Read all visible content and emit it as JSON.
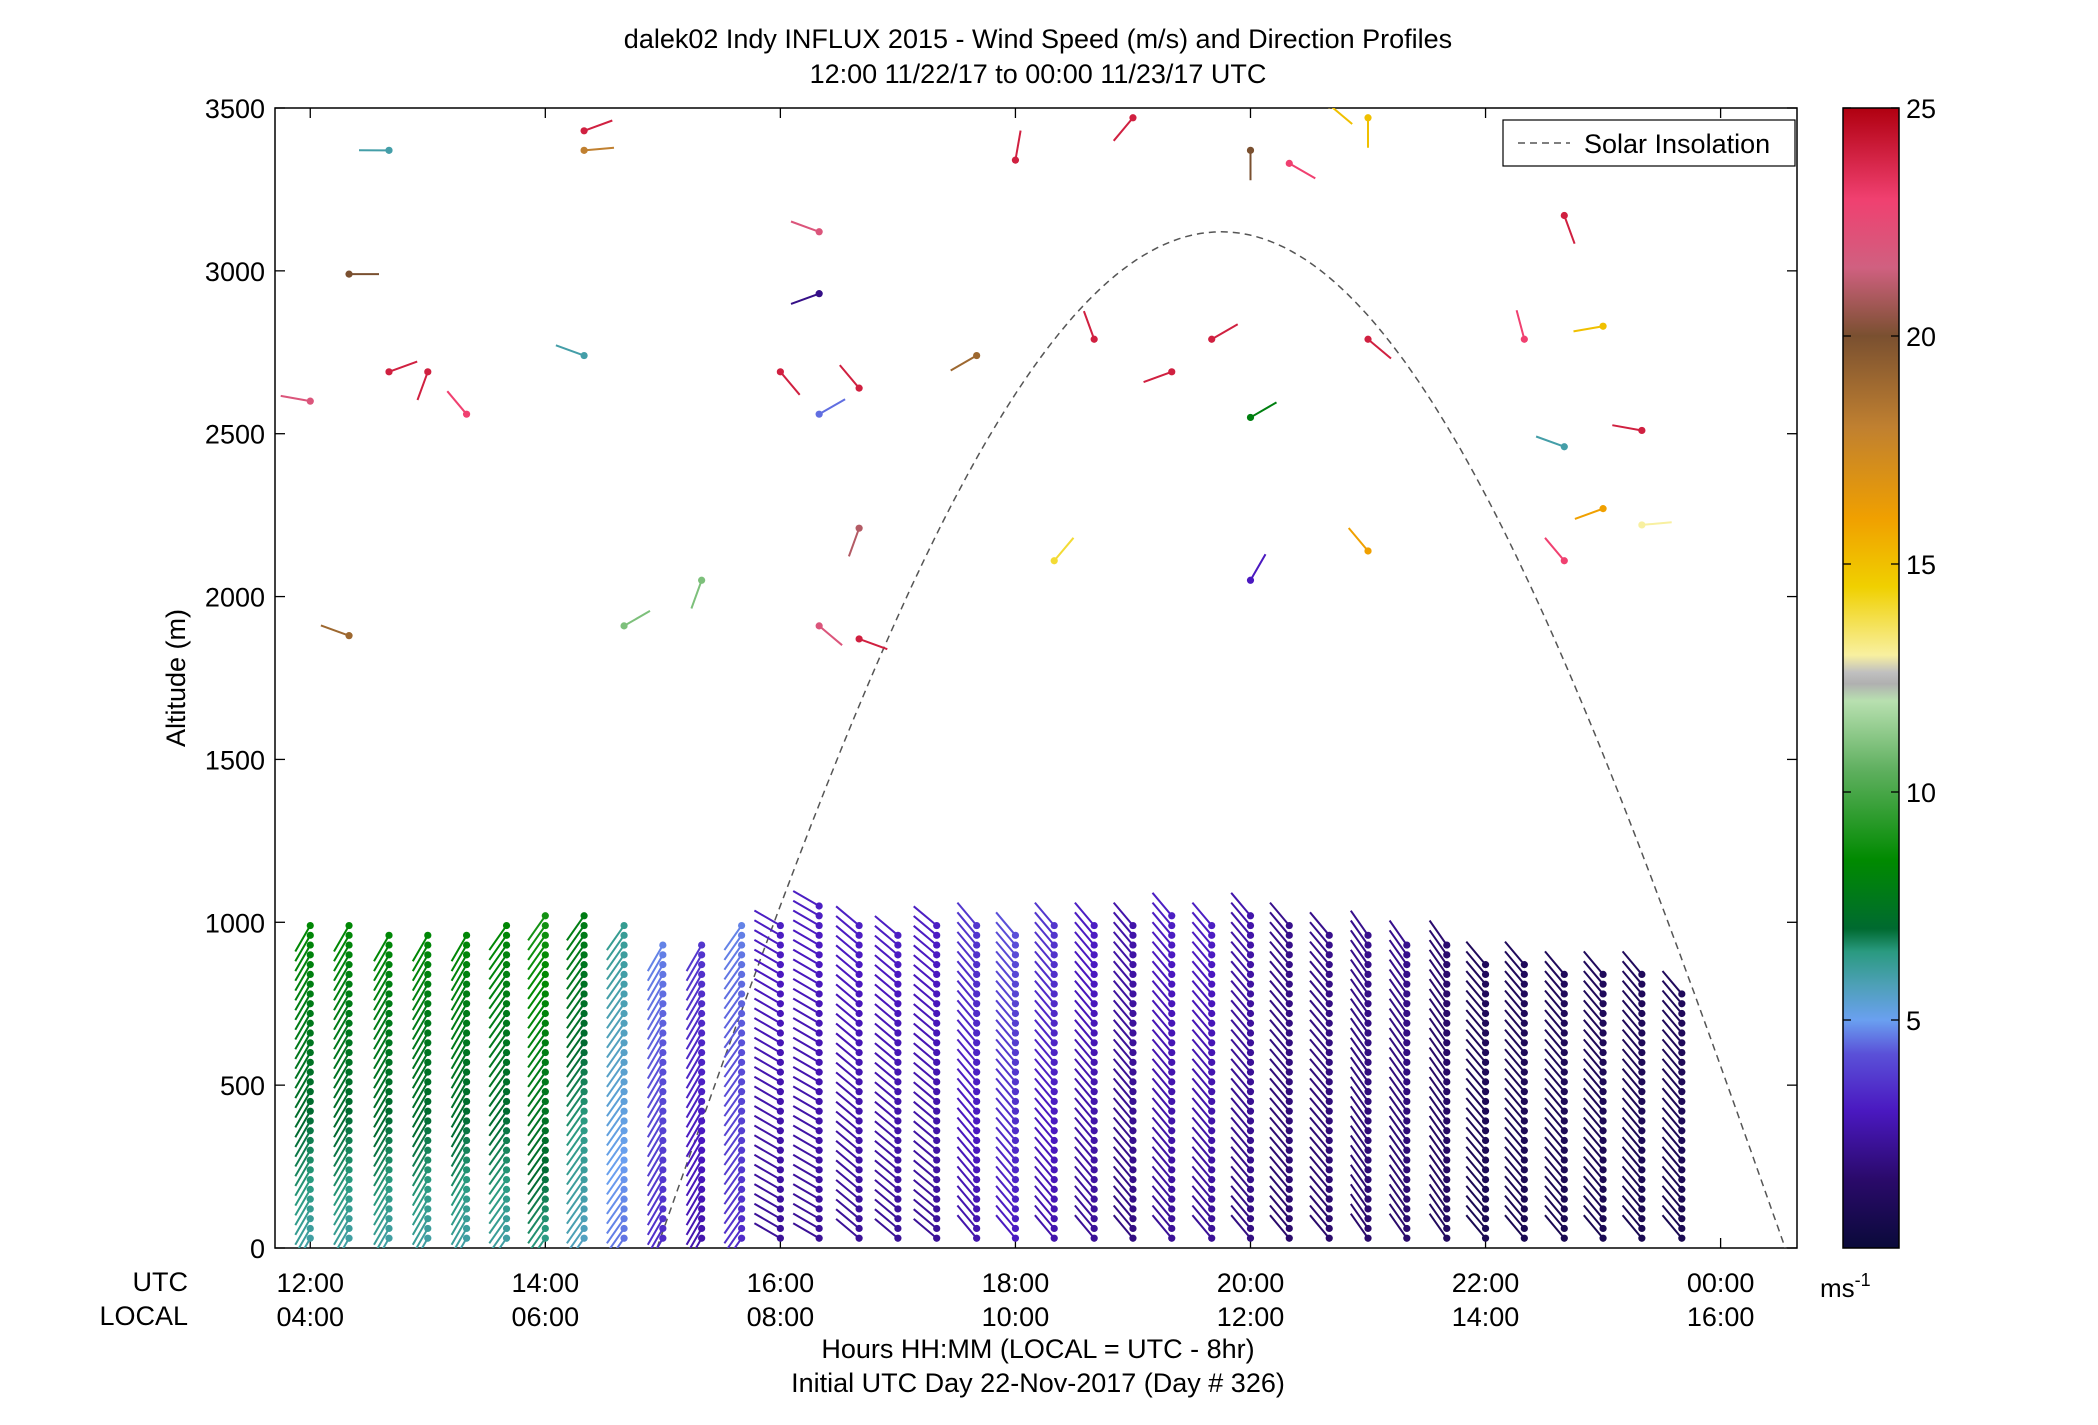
{
  "chart_data": {
    "type": "scatter",
    "title": "dalek02 Indy INFLUX 2015 - Wind Speed (m/s) and Direction Profiles",
    "subtitle": "12:00 11/22/17 to 00:00 11/23/17  UTC",
    "ylabel": "Altitude (m)",
    "xlabel": "Hours HH:MM  (LOCAL = UTC - 8hr)",
    "footer": "Initial UTC Day 22-Nov-2017 (Day # 326)",
    "utc_row_label": "UTC",
    "local_row_label": "LOCAL",
    "xlim": [
      11.7,
      24.65
    ],
    "ylim": [
      0,
      3500
    ],
    "x_ticks": [
      12,
      14,
      16,
      18,
      20,
      22,
      24
    ],
    "x_tick_labels_utc": [
      "12:00",
      "14:00",
      "16:00",
      "18:00",
      "20:00",
      "22:00",
      "00:00"
    ],
    "x_tick_labels_local": [
      "04:00",
      "06:00",
      "08:00",
      "10:00",
      "12:00",
      "14:00",
      "16:00"
    ],
    "y_ticks": [
      0,
      500,
      1000,
      1500,
      2000,
      2500,
      3000,
      3500
    ],
    "y_tick_labels": [
      "0",
      "500",
      "1000",
      "1500",
      "2000",
      "2500",
      "3000",
      "3500"
    ],
    "legend": {
      "entries": [
        "Solar Insolation"
      ],
      "position": "top-right"
    },
    "colorbar": {
      "min": 0,
      "max": 25,
      "ticks": [
        5,
        10,
        15,
        20,
        25
      ],
      "tick_labels": [
        "5",
        "10",
        "15",
        "20",
        "25"
      ],
      "unit_base": "ms",
      "unit_sup": "-1"
    },
    "solar_insolation": {
      "peak_time_utc": 19.75,
      "peak_altitude": 3120,
      "zero_time_start": 14.95,
      "zero_time_end": 24.55
    },
    "profiles": [
      {
        "time": 12.0,
        "top": 1000,
        "speed": 8.0,
        "dir": 210
      },
      {
        "time": 12.33,
        "top": 1000,
        "speed": 8.0,
        "dir": 210
      },
      {
        "time": 12.67,
        "top": 980,
        "speed": 8.0,
        "dir": 210
      },
      {
        "time": 13.0,
        "top": 980,
        "speed": 8.0,
        "dir": 210
      },
      {
        "time": 13.33,
        "top": 980,
        "speed": 8.0,
        "dir": 210
      },
      {
        "time": 13.67,
        "top": 1000,
        "speed": 8.0,
        "dir": 215
      },
      {
        "time": 14.0,
        "top": 1020,
        "speed": 8.5,
        "dir": 215
      },
      {
        "time": 14.33,
        "top": 1020,
        "speed": 7.5,
        "dir": 215
      },
      {
        "time": 14.67,
        "top": 1000,
        "speed": 6.0,
        "dir": 215
      },
      {
        "time": 15.0,
        "top": 940,
        "speed": 4.5,
        "dir": 210
      },
      {
        "time": 15.33,
        "top": 940,
        "speed": 3.5,
        "dir": 210
      },
      {
        "time": 15.67,
        "top": 1000,
        "speed": 4.5,
        "dir": 215
      },
      {
        "time": 16.0,
        "top": 1000,
        "speed": 3.0,
        "dir": 300
      },
      {
        "time": 16.33,
        "top": 1050,
        "speed": 3.0,
        "dir": 300
      },
      {
        "time": 16.67,
        "top": 1000,
        "speed": 3.0,
        "dir": 310
      },
      {
        "time": 17.0,
        "top": 980,
        "speed": 3.0,
        "dir": 310
      },
      {
        "time": 17.33,
        "top": 1000,
        "speed": 3.0,
        "dir": 310
      },
      {
        "time": 17.67,
        "top": 1000,
        "speed": 3.5,
        "dir": 320
      },
      {
        "time": 18.0,
        "top": 980,
        "speed": 4.0,
        "dir": 320
      },
      {
        "time": 18.33,
        "top": 1000,
        "speed": 3.5,
        "dir": 320
      },
      {
        "time": 18.67,
        "top": 1000,
        "speed": 3.0,
        "dir": 320
      },
      {
        "time": 19.0,
        "top": 1000,
        "speed": 2.5,
        "dir": 320
      },
      {
        "time": 19.33,
        "top": 1020,
        "speed": 3.0,
        "dir": 320
      },
      {
        "time": 19.67,
        "top": 1000,
        "speed": 3.0,
        "dir": 320
      },
      {
        "time": 20.0,
        "top": 1020,
        "speed": 2.5,
        "dir": 320
      },
      {
        "time": 20.33,
        "top": 1000,
        "speed": 2.0,
        "dir": 320
      },
      {
        "time": 20.67,
        "top": 980,
        "speed": 2.0,
        "dir": 320
      },
      {
        "time": 21.0,
        "top": 960,
        "speed": 2.0,
        "dir": 325
      },
      {
        "time": 21.33,
        "top": 940,
        "speed": 2.0,
        "dir": 325
      },
      {
        "time": 21.67,
        "top": 940,
        "speed": 1.5,
        "dir": 325
      },
      {
        "time": 22.0,
        "top": 880,
        "speed": 1.0,
        "dir": 320
      },
      {
        "time": 22.33,
        "top": 880,
        "speed": 1.0,
        "dir": 320
      },
      {
        "time": 22.67,
        "top": 860,
        "speed": 1.0,
        "dir": 320
      },
      {
        "time": 23.0,
        "top": 860,
        "speed": 1.0,
        "dir": 320
      },
      {
        "time": 23.33,
        "top": 860,
        "speed": 1.0,
        "dir": 320
      },
      {
        "time": 23.67,
        "top": 800,
        "speed": 1.0,
        "dir": 320
      }
    ],
    "upper_points": [
      {
        "time": 12.0,
        "alt": 2600,
        "speed": 22,
        "dir": 280
      },
      {
        "time": 12.33,
        "alt": 2990,
        "speed": 20,
        "dir": 90
      },
      {
        "time": 12.33,
        "alt": 1880,
        "speed": 19,
        "dir": 290
      },
      {
        "time": 12.67,
        "alt": 3370,
        "speed": 6,
        "dir": 270
      },
      {
        "time": 12.67,
        "alt": 2690,
        "speed": 24,
        "dir": 70
      },
      {
        "time": 13.0,
        "alt": 2690,
        "speed": 24,
        "dir": 200
      },
      {
        "time": 13.33,
        "alt": 2560,
        "speed": 23,
        "dir": 320
      },
      {
        "time": 14.33,
        "alt": 3430,
        "speed": 24,
        "dir": 70
      },
      {
        "time": 14.33,
        "alt": 3370,
        "speed": 18,
        "dir": 85
      },
      {
        "time": 14.33,
        "alt": 2740,
        "speed": 6,
        "dir": 290
      },
      {
        "time": 14.67,
        "alt": 1910,
        "speed": 11,
        "dir": 60
      },
      {
        "time": 15.33,
        "alt": 2050,
        "speed": 11,
        "dir": 200
      },
      {
        "time": 16.33,
        "alt": 3120,
        "speed": 22,
        "dir": 290
      },
      {
        "time": 16.33,
        "alt": 2930,
        "speed": 2,
        "dir": 250
      },
      {
        "time": 16.0,
        "alt": 2690,
        "speed": 24,
        "dir": 140
      },
      {
        "time": 16.67,
        "alt": 2640,
        "speed": 24,
        "dir": 320
      },
      {
        "time": 16.33,
        "alt": 2560,
        "speed": 4.5,
        "dir": 60
      },
      {
        "time": 16.67,
        "alt": 2210,
        "speed": 21,
        "dir": 200
      },
      {
        "time": 16.33,
        "alt": 1910,
        "speed": 22,
        "dir": 130
      },
      {
        "time": 16.67,
        "alt": 1870,
        "speed": 24,
        "dir": 110
      },
      {
        "time": 18.0,
        "alt": 3340,
        "speed": 24,
        "dir": 10
      },
      {
        "time": 17.67,
        "alt": 2740,
        "speed": 19,
        "dir": 240
      },
      {
        "time": 18.33,
        "alt": 2110,
        "speed": 14,
        "dir": 40
      },
      {
        "time": 18.67,
        "alt": 2790,
        "speed": 24,
        "dir": 340
      },
      {
        "time": 19.0,
        "alt": 3470,
        "speed": 24,
        "dir": 220
      },
      {
        "time": 19.33,
        "alt": 2690,
        "speed": 24,
        "dir": 250
      },
      {
        "time": 19.67,
        "alt": 2790,
        "speed": 24,
        "dir": 60
      },
      {
        "time": 20.0,
        "alt": 3370,
        "speed": 20,
        "dir": 180
      },
      {
        "time": 20.33,
        "alt": 3330,
        "speed": 23,
        "dir": 120
      },
      {
        "time": 20.0,
        "alt": 2550,
        "speed": 8,
        "dir": 60
      },
      {
        "time": 20.0,
        "alt": 2050,
        "speed": 3,
        "dir": 30
      },
      {
        "time": 20.67,
        "alt": 3510,
        "speed": 15,
        "dir": 130
      },
      {
        "time": 21.0,
        "alt": 3470,
        "speed": 15,
        "dir": 180
      },
      {
        "time": 21.0,
        "alt": 2790,
        "speed": 24,
        "dir": 130
      },
      {
        "time": 21.0,
        "alt": 2140,
        "speed": 16,
        "dir": 320
      },
      {
        "time": 22.33,
        "alt": 2790,
        "speed": 23,
        "dir": 345
      },
      {
        "time": 22.67,
        "alt": 3170,
        "speed": 24,
        "dir": 160
      },
      {
        "time": 22.67,
        "alt": 2460,
        "speed": 6,
        "dir": 290
      },
      {
        "time": 22.67,
        "alt": 2110,
        "speed": 23,
        "dir": 320
      },
      {
        "time": 23.0,
        "alt": 2830,
        "speed": 15,
        "dir": 260
      },
      {
        "time": 23.33,
        "alt": 2510,
        "speed": 24,
        "dir": 280
      },
      {
        "time": 23.0,
        "alt": 2270,
        "speed": 16,
        "dir": 250
      },
      {
        "time": 23.33,
        "alt": 2220,
        "speed": 13,
        "dir": 85
      }
    ]
  }
}
